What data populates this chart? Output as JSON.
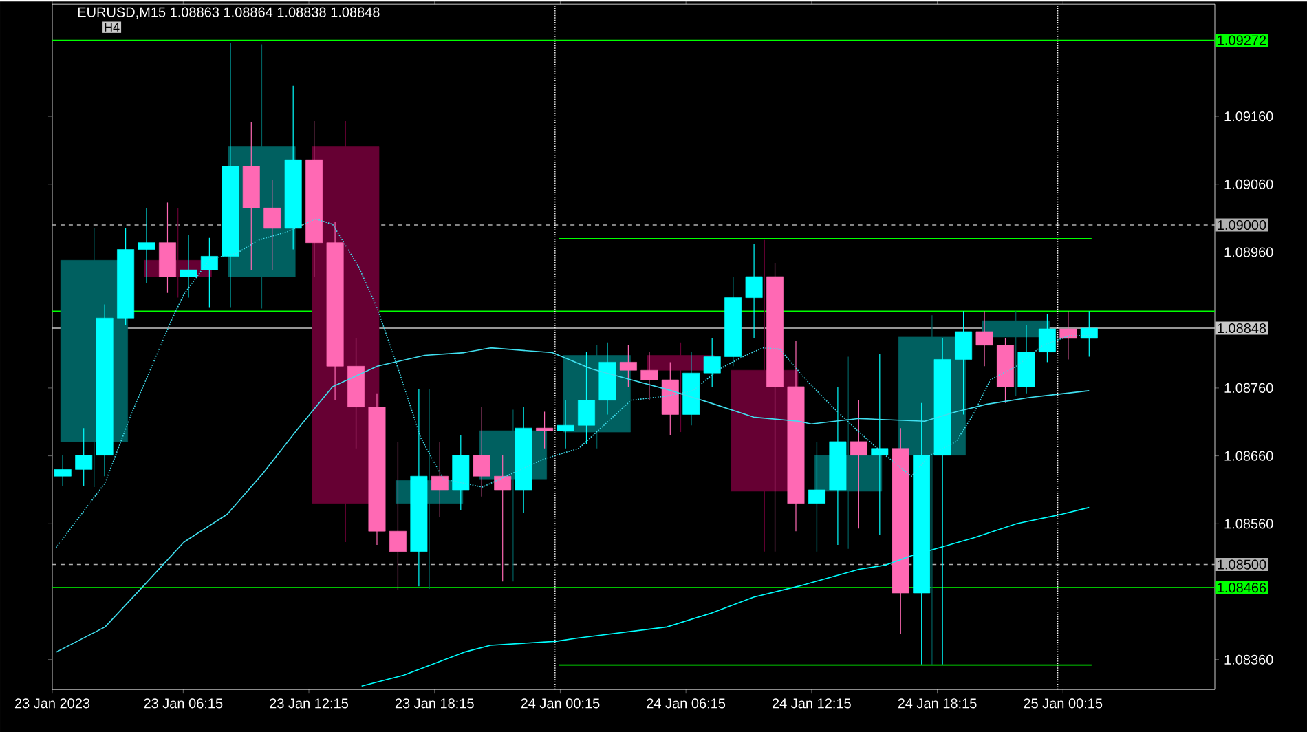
{
  "chart_data": {
    "type": "candlestick",
    "title": "EURUSD,M15  1.08863 1.08864 1.08838 1.08848",
    "annotations": [
      "H4"
    ],
    "xlim": [
      "2023-01-23T00:00",
      "2023-01-25T07:30"
    ],
    "ylim": [
      1.08316,
      1.09325
    ],
    "xticks": [
      {
        "value": "2023-01-23T00:00",
        "label": "23 Jan 2023"
      },
      {
        "value": "2023-01-23T06:15",
        "label": "23 Jan 06:15"
      },
      {
        "value": "2023-01-23T12:15",
        "label": "23 Jan 12:15"
      },
      {
        "value": "2023-01-23T18:15",
        "label": "23 Jan 18:15"
      },
      {
        "value": "2023-01-24T00:15",
        "label": "24 Jan 00:15"
      },
      {
        "value": "2023-01-24T06:15",
        "label": "24 Jan 06:15"
      },
      {
        "value": "2023-01-24T12:15",
        "label": "24 Jan 12:15"
      },
      {
        "value": "2023-01-24T18:15",
        "label": "24 Jan 18:15"
      },
      {
        "value": "2023-01-25T00:15",
        "label": "25 Jan 00:15"
      }
    ],
    "yticks": [
      {
        "value": 1.0836,
        "label": "1.08360"
      },
      {
        "value": 1.0856,
        "label": "1.08560"
      },
      {
        "value": 1.0866,
        "label": "1.08660"
      },
      {
        "value": 1.0876,
        "label": "1.08760"
      },
      {
        "value": 1.0896,
        "label": "1.08960"
      },
      {
        "value": 1.0906,
        "label": "1.09060"
      },
      {
        "value": 1.0916,
        "label": "1.09160"
      }
    ],
    "ref_lines": [
      {
        "axis": "y",
        "value": 1.09272,
        "label": "1.09272",
        "color": "#00ff00",
        "line_style": "solid"
      },
      {
        "axis": "y",
        "value": 1.09,
        "label": "1.09000",
        "color": "#b0b0b0",
        "line_style": "dashed"
      },
      {
        "axis": "y",
        "value": 1.085,
        "label": "1.08500",
        "color": "#b0b0b0",
        "line_style": "dashed"
      },
      {
        "axis": "y",
        "value": 1.08466,
        "label": "1.08466",
        "color": "#00ff00",
        "line_style": "solid"
      },
      {
        "axis": "y",
        "value": 1.08848,
        "label": "1.08848",
        "color": "#c8c8c8",
        "line_style": "solid"
      },
      {
        "axis": "y",
        "value": 1.08873,
        "color": "#00ff00",
        "line_style": "solid"
      },
      {
        "axis": "x",
        "value": "2023-01-24T00:00",
        "color": "#ffffff",
        "line_style": "dotted"
      },
      {
        "axis": "x",
        "value": "2023-01-25T00:00",
        "color": "#ffffff",
        "line_style": "dotted"
      }
    ],
    "series": [
      {
        "x": [
          "2023-01-23T02:00",
          "2023-01-23T06:00",
          "2023-01-23T10:00",
          "2023-01-23T14:00",
          "2023-01-23T18:00",
          "2023-01-23T22:00",
          "2023-01-24T02:00",
          "2023-01-24T06:00",
          "2023-01-24T10:00",
          "2023-01-24T14:00",
          "2023-01-24T18:00",
          "2023-01-24T22:00"
        ],
        "ohlc": [
          [
            1.08681,
            1.08995,
            1.08614,
            1.08948
          ],
          [
            1.08948,
            1.09025,
            1.08893,
            1.08924
          ],
          [
            1.08924,
            1.09266,
            1.08877,
            1.09116
          ],
          [
            1.09116,
            1.09153,
            1.08533,
            1.0859
          ],
          [
            1.0859,
            1.08758,
            1.08464,
            1.08624
          ],
          [
            1.08626,
            1.08728,
            1.08475,
            1.08697
          ],
          [
            1.08695,
            1.08823,
            1.08671,
            1.08808
          ],
          [
            1.08808,
            1.08827,
            1.08695,
            1.08786
          ],
          [
            1.08786,
            1.08978,
            1.08519,
            1.08608
          ],
          [
            1.08608,
            1.08806,
            1.08523,
            1.08661
          ],
          [
            1.08661,
            1.08867,
            1.08353,
            1.08835
          ],
          [
            1.08835,
            1.08873,
            1.08748,
            1.08859
          ]
        ],
        "colors": [
          "#006060",
          "#660033",
          "#006060",
          "#660033",
          "#006060",
          "#006060",
          "#006060",
          "#660033",
          "#660033",
          "#006060",
          "#006060",
          "#006060"
        ]
      },
      {
        "type": "line",
        "color": "#40e0f0",
        "line_style": "dotted",
        "x": [
          "2023-01-23T00:11",
          "2023-01-23T02:31",
          "2023-01-23T03:46",
          "2023-01-23T05:39",
          "2023-01-23T06:17",
          "2023-01-23T07:32",
          "2023-01-23T08:47",
          "2023-01-23T09:52",
          "2023-01-23T11:19",
          "2023-01-23T12:34",
          "2023-01-23T13:23",
          "2023-01-23T14:38",
          "2023-01-23T15:31",
          "2023-01-23T16:31",
          "2023-01-23T17:35",
          "2023-01-23T18:40",
          "2023-01-23T20:32",
          "2023-01-23T23:26",
          "2023-01-24T01:08",
          "2023-01-24T03:38",
          "2023-01-24T05:20",
          "2023-01-24T06:35",
          "2023-01-24T07:51",
          "2023-01-24T09:06",
          "2023-01-24T09:55",
          "2023-01-24T10:44",
          "2023-01-24T11:59",
          "2023-01-24T13:15",
          "2023-01-24T14:31",
          "2023-01-24T15:46",
          "2023-01-24T17:01",
          "2023-01-24T17:54",
          "2023-01-24T19:09",
          "2023-01-24T19:58",
          "2023-01-24T20:47",
          "2023-01-24T22:02",
          "2023-01-24T23:18",
          "2023-01-25T00:34",
          "2023-01-25T01:37"
        ],
        "values": [
          1.08525,
          1.0862,
          1.08721,
          1.08857,
          1.08898,
          1.0895,
          1.08958,
          1.08978,
          1.08991,
          1.09009,
          1.09001,
          1.08938,
          1.08877,
          1.08788,
          1.08687,
          1.08626,
          1.08614,
          1.08655,
          1.08671,
          1.08742,
          1.08748,
          1.08756,
          1.08788,
          1.08808,
          1.08819,
          1.08817,
          1.08772,
          1.08732,
          1.08695,
          1.08661,
          1.0863,
          1.08661,
          1.08681,
          1.08721,
          1.08772,
          1.08792,
          1.08823,
          1.08837,
          1.08837
        ]
      },
      {
        "type": "line",
        "color": "#40e0f0",
        "line_style": "solid",
        "x": [
          "2023-01-23T00:11",
          "2023-01-23T02:31",
          "2023-01-23T04:13",
          "2023-01-23T06:17",
          "2023-01-23T08:21",
          "2023-01-23T10:03",
          "2023-01-23T11:45",
          "2023-01-23T13:23",
          "2023-01-23T15:31",
          "2023-01-23T17:47",
          "2023-01-23T19:40",
          "2023-01-23T20:55",
          "2023-01-23T23:52",
          "2023-01-24T01:45",
          "2023-01-24T03:38",
          "2023-01-24T05:20",
          "2023-01-24T07:25",
          "2023-01-24T09:29",
          "2023-01-24T11:37",
          "2023-01-24T12:14",
          "2023-01-24T14:31",
          "2023-01-24T17:39",
          "2023-01-24T19:09",
          "2023-01-24T20:36",
          "2023-01-24T22:40",
          "2023-01-25T01:30"
        ],
        "values": [
          1.08371,
          1.08408,
          1.08464,
          1.08533,
          1.08574,
          1.08634,
          1.08701,
          1.08762,
          1.08792,
          1.08808,
          1.08812,
          1.08819,
          1.08812,
          1.08788,
          1.08772,
          1.08758,
          1.08738,
          1.08717,
          1.08711,
          1.08707,
          1.08715,
          1.08711,
          1.08725,
          1.08736,
          1.08746,
          1.08756
        ]
      },
      {
        "type": "line",
        "color": "#00ffff",
        "line_style": "solid",
        "x": [
          "2023-01-23T14:46",
          "2023-01-23T16:46",
          "2023-01-23T19:40",
          "2023-01-23T20:55",
          "2023-01-24T00:04",
          "2023-01-24T01:08",
          "2023-01-24T05:20",
          "2023-01-24T07:25",
          "2023-01-24T09:29",
          "2023-01-24T11:37",
          "2023-01-24T14:31",
          "2023-01-24T15:46",
          "2023-01-24T17:01",
          "2023-01-24T19:58",
          "2023-01-24T22:02",
          "2023-01-25T00:11",
          "2023-01-25T01:30"
        ],
        "values": [
          1.08321,
          1.08337,
          1.08371,
          1.08381,
          1.08387,
          1.08392,
          1.08408,
          1.08428,
          1.08452,
          1.08468,
          1.08493,
          1.08499,
          1.08513,
          1.08539,
          1.0856,
          1.08574,
          1.08584
        ]
      },
      {
        "type": "line",
        "color": "#00ff00",
        "line_style": "solid",
        "x": [
          "2023-01-24T00:11",
          "2023-01-25T01:37"
        ],
        "values": [
          1.0898,
          1.0898
        ]
      },
      {
        "type": "line",
        "color": "#00ff00",
        "line_style": "solid",
        "x": [
          "2023-01-24T00:11",
          "2023-01-25T01:37"
        ],
        "values": [
          1.08352,
          1.08352
        ]
      },
      {
        "x": [
          "2023-01-23T00:30",
          "2023-01-23T01:30",
          "2023-01-23T02:30",
          "2023-01-23T03:30",
          "2023-01-23T04:30",
          "2023-01-23T05:30",
          "2023-01-23T06:30",
          "2023-01-23T07:30",
          "2023-01-23T08:30",
          "2023-01-23T09:30",
          "2023-01-23T10:30",
          "2023-01-23T11:30",
          "2023-01-23T12:30",
          "2023-01-23T13:30",
          "2023-01-23T14:30",
          "2023-01-23T15:30",
          "2023-01-23T16:30",
          "2023-01-23T17:30",
          "2023-01-23T18:30",
          "2023-01-23T19:30",
          "2023-01-23T20:30",
          "2023-01-23T21:30",
          "2023-01-23T22:30",
          "2023-01-23T23:30",
          "2023-01-24T00:30",
          "2023-01-24T01:30",
          "2023-01-24T02:30",
          "2023-01-24T03:30",
          "2023-01-24T04:30",
          "2023-01-24T05:30",
          "2023-01-24T06:30",
          "2023-01-24T07:30",
          "2023-01-24T08:30",
          "2023-01-24T09:30",
          "2023-01-24T10:30",
          "2023-01-24T11:30",
          "2023-01-24T12:30",
          "2023-01-24T13:30",
          "2023-01-24T14:30",
          "2023-01-24T15:30",
          "2023-01-24T16:30",
          "2023-01-24T17:30",
          "2023-01-24T18:30",
          "2023-01-24T19:30",
          "2023-01-24T20:30",
          "2023-01-24T21:30",
          "2023-01-24T22:30",
          "2023-01-24T23:30",
          "2023-01-25T00:30",
          "2023-01-25T01:30"
        ],
        "ohlc": [
          [
            1.0863,
            1.08661,
            1.08616,
            1.0864
          ],
          [
            1.0864,
            1.08701,
            1.08616,
            1.08661
          ],
          [
            1.08661,
            1.08883,
            1.0863,
            1.08863
          ],
          [
            1.08863,
            1.08995,
            1.08853,
            1.08964
          ],
          [
            1.08964,
            1.09025,
            1.08914,
            1.08974
          ],
          [
            1.08974,
            1.09033,
            1.089,
            1.08924
          ],
          [
            1.08924,
            1.08985,
            1.08893,
            1.08934
          ],
          [
            1.08934,
            1.08981,
            1.08879,
            1.08954
          ],
          [
            1.08954,
            1.09268,
            1.08879,
            1.09086
          ],
          [
            1.09086,
            1.09151,
            1.08934,
            1.09025
          ],
          [
            1.09025,
            1.09066,
            1.08934,
            1.08995
          ],
          [
            1.08995,
            1.09205,
            1.08964,
            1.09096
          ],
          [
            1.09096,
            1.09153,
            1.08924,
            1.08974
          ],
          [
            1.08974,
            1.09005,
            1.08742,
            1.08792
          ],
          [
            1.08792,
            1.08833,
            1.08671,
            1.08732
          ],
          [
            1.08732,
            1.08752,
            1.08529,
            1.08549
          ],
          [
            1.08549,
            1.08681,
            1.08462,
            1.08519
          ],
          [
            1.08519,
            1.08758,
            1.08468,
            1.0863
          ],
          [
            1.0863,
            1.08681,
            1.0857,
            1.0861
          ],
          [
            1.0861,
            1.08691,
            1.0858,
            1.08661
          ],
          [
            1.08661,
            1.08732,
            1.086,
            1.0863
          ],
          [
            1.0863,
            1.08661,
            1.08475,
            1.0861
          ],
          [
            1.0861,
            1.08732,
            1.08576,
            1.08701
          ],
          [
            1.08701,
            1.08725,
            1.08671,
            1.08697
          ],
          [
            1.08697,
            1.08742,
            1.08671,
            1.08705
          ],
          [
            1.08705,
            1.08813,
            1.08677,
            1.08742
          ],
          [
            1.08742,
            1.08827,
            1.08721,
            1.08798
          ],
          [
            1.08798,
            1.08823,
            1.08762,
            1.08786
          ],
          [
            1.08786,
            1.08813,
            1.08742,
            1.08772
          ],
          [
            1.08772,
            1.08798,
            1.08691,
            1.08721
          ],
          [
            1.08721,
            1.08813,
            1.08705,
            1.08782
          ],
          [
            1.08782,
            1.08833,
            1.08762,
            1.08806
          ],
          [
            1.08806,
            1.08924,
            1.08792,
            1.08893
          ],
          [
            1.08893,
            1.08972,
            1.08833,
            1.08924
          ],
          [
            1.08924,
            1.08944,
            1.08519,
            1.08762
          ],
          [
            1.08762,
            1.08829,
            1.08549,
            1.0859
          ],
          [
            1.0859,
            1.08681,
            1.08519,
            1.0861
          ],
          [
            1.0861,
            1.08762,
            1.08529,
            1.08681
          ],
          [
            1.08681,
            1.08742,
            1.08553,
            1.08661
          ],
          [
            1.08661,
            1.0881,
            1.08543,
            1.08671
          ],
          [
            1.08671,
            1.08701,
            1.08398,
            1.08458
          ],
          [
            1.08458,
            1.08738,
            1.08353,
            1.08661
          ],
          [
            1.08661,
            1.08833,
            1.08353,
            1.08802
          ],
          [
            1.08802,
            1.08873,
            1.08721,
            1.08843
          ],
          [
            1.08843,
            1.08873,
            1.08792,
            1.08823
          ],
          [
            1.08823,
            1.08833,
            1.08738,
            1.08762
          ],
          [
            1.08762,
            1.08853,
            1.08752,
            1.08813
          ],
          [
            1.08813,
            1.08869,
            1.08798,
            1.08847
          ],
          [
            1.08847,
            1.08873,
            1.08802,
            1.08833
          ],
          [
            1.08833,
            1.08873,
            1.08806,
            1.08848
          ]
        ],
        "colors": [
          "#00ffff",
          "#00ffff",
          "#00ffff",
          "#00ffff",
          "#00ffff",
          "#ff69b4",
          "#00ffff",
          "#00ffff",
          "#00ffff",
          "#ff69b4",
          "#ff69b4",
          "#00ffff",
          "#ff69b4",
          "#ff69b4",
          "#ff69b4",
          "#ff69b4",
          "#ff69b4",
          "#00ffff",
          "#ff69b4",
          "#00ffff",
          "#ff69b4",
          "#ff69b4",
          "#00ffff",
          "#ff69b4",
          "#00ffff",
          "#00ffff",
          "#00ffff",
          "#ff69b4",
          "#ff69b4",
          "#ff69b4",
          "#00ffff",
          "#00ffff",
          "#00ffff",
          "#00ffff",
          "#ff69b4",
          "#ff69b4",
          "#00ffff",
          "#00ffff",
          "#ff69b4",
          "#00ffff",
          "#ff69b4",
          "#00ffff",
          "#00ffff",
          "#00ffff",
          "#ff69b4",
          "#ff69b4",
          "#00ffff",
          "#00ffff",
          "#ff69b4",
          "#00ffff"
        ]
      }
    ]
  }
}
